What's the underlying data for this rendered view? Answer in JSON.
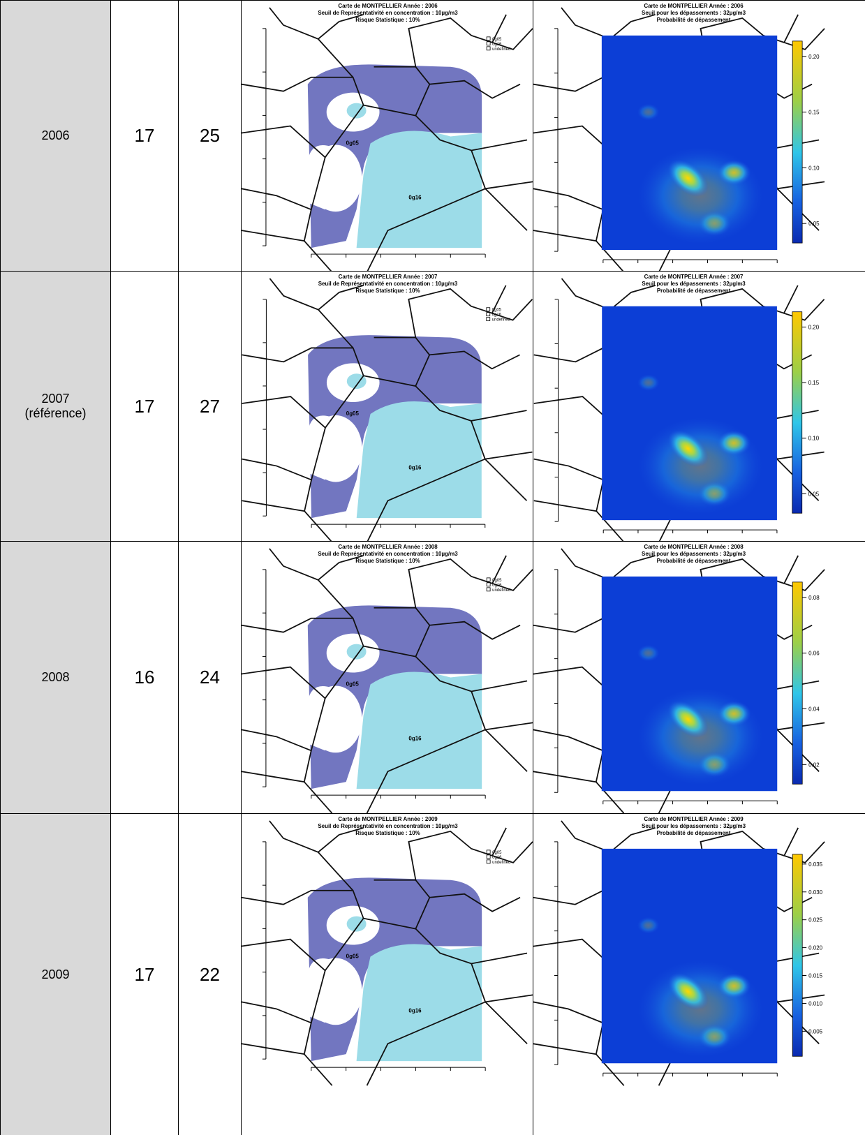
{
  "rows": [
    {
      "year": "2006",
      "stations": "17",
      "points": "25",
      "map_zones": {
        "title": [
          "Carte de MONTPELLIER Année : 2006",
          "Seuil de Représentativité en concentration : 10µg/m3",
          "Risque Statistique : 10%"
        ],
        "legend": [
          "0g05",
          "0g16",
          "undefined"
        ],
        "zones": [
          "0g05",
          "0g16"
        ]
      },
      "map_prob": {
        "title": [
          "Carte de MONTPELLIER Année : 2006",
          "Seuil pour les dépassements : 32µg/m3",
          "Probabilité de dépassement"
        ],
        "scale": [
          "0.20",
          "0.15",
          "0.10",
          "0.05"
        ]
      }
    },
    {
      "year": "2007",
      "note": "(référence)",
      "stations": "17",
      "points": "27",
      "map_zones": {
        "title": [
          "Carte de MONTPELLIER Année : 2007",
          "Seuil de Représentativité en concentration : 10µg/m3",
          "Risque Statistique : 10%"
        ],
        "legend": [
          "0g05",
          "0g16",
          "undefined"
        ],
        "zones": [
          "0g05",
          "0g16"
        ]
      },
      "map_prob": {
        "title": [
          "Carte de MONTPELLIER Année : 2007",
          "Seuil pour les dépassements : 32µg/m3",
          "Probabilité de dépassement"
        ],
        "scale": [
          "0.20",
          "0.15",
          "0.10",
          "0.05"
        ]
      }
    },
    {
      "year": "2008",
      "stations": "16",
      "points": "24",
      "map_zones": {
        "title": [
          "Carte de MONTPELLIER Année : 2008",
          "Seuil de Représentativité en concentration : 10µg/m3",
          "Risque Statistique : 10%"
        ],
        "legend": [
          "0g05",
          "0g16",
          "undefined"
        ],
        "zones": [
          "0g05",
          "0g16"
        ]
      },
      "map_prob": {
        "title": [
          "Carte de MONTPELLIER Année : 2008",
          "Seuil pour les dépassements : 32µg/m3",
          "Probabilité de dépassement"
        ],
        "scale": [
          "0.08",
          "0.06",
          "0.04",
          "0.02"
        ]
      }
    },
    {
      "year": "2009",
      "stations": "17",
      "points": "22",
      "map_zones": {
        "title": [
          "Carte de MONTPELLIER Année : 2009",
          "Seuil de Représentativité en concentration : 10µg/m3",
          "Risque Statistique : 10%"
        ],
        "legend": [
          "0g05",
          "0g16",
          "undefined"
        ],
        "zones": [
          "0g05",
          "0g16"
        ]
      },
      "map_prob": {
        "title": [
          "Carte de MONTPELLIER Année : 2009",
          "Seuil pour les dépassements : 32µg/m3",
          "Probabilité de dépassement"
        ],
        "scale": [
          "0.035",
          "0.030",
          "0.025",
          "0.020",
          "0.015",
          "0.010",
          "0.005"
        ]
      }
    }
  ]
}
